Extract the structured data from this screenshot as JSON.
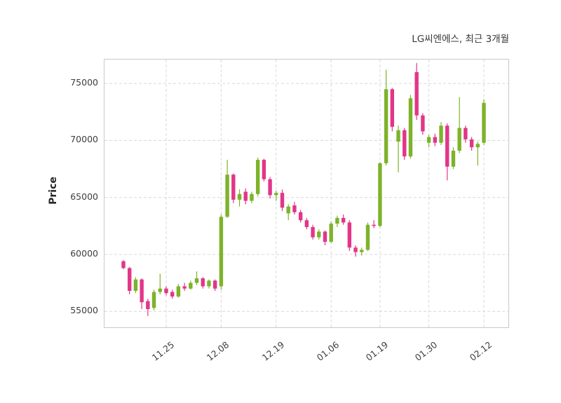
{
  "chart_data": {
    "type": "candlestick",
    "title": "LG씨엔에스, 최근 3개월",
    "ylabel": "Price",
    "ylim": [
      53600,
      77100
    ],
    "grid": "dashed-both-axes",
    "legend": "none",
    "up_color": "#7db32a",
    "down_color": "#e23688",
    "y_ticks": [
      55000,
      60000,
      65000,
      70000,
      75000
    ],
    "x_ticks": [
      {
        "index": 7,
        "label": "11.25"
      },
      {
        "index": 16,
        "label": "12.08"
      },
      {
        "index": 25,
        "label": "12.19"
      },
      {
        "index": 34,
        "label": "01.06"
      },
      {
        "index": 42,
        "label": "01.19"
      },
      {
        "index": 50,
        "label": "01.30"
      },
      {
        "index": 59,
        "label": "02.12"
      }
    ],
    "candle_columns": [
      "open",
      "high",
      "low",
      "close"
    ],
    "candles": [
      [
        59400,
        59500,
        58700,
        58800
      ],
      [
        58800,
        58900,
        56500,
        56800
      ],
      [
        56800,
        58000,
        56600,
        57800
      ],
      [
        57800,
        57900,
        55200,
        55800
      ],
      [
        55900,
        56100,
        54600,
        55200
      ],
      [
        55300,
        56900,
        55100,
        56700
      ],
      [
        56700,
        58300,
        56500,
        57000
      ],
      [
        57000,
        57200,
        56400,
        56600
      ],
      [
        56700,
        56900,
        56100,
        56300
      ],
      [
        56300,
        57400,
        56200,
        57200
      ],
      [
        57200,
        57500,
        56800,
        57000
      ],
      [
        57000,
        57700,
        56900,
        57500
      ],
      [
        57500,
        58500,
        57300,
        57900
      ],
      [
        57900,
        58000,
        57000,
        57200
      ],
      [
        57200,
        57800,
        57000,
        57700
      ],
      [
        57700,
        57800,
        56800,
        57000
      ],
      [
        57200,
        63500,
        56900,
        63300
      ],
      [
        63300,
        68300,
        63200,
        67000
      ],
      [
        67000,
        67100,
        64500,
        64800
      ],
      [
        64800,
        65700,
        64200,
        65300
      ],
      [
        65500,
        65800,
        64400,
        64700
      ],
      [
        64700,
        65500,
        64500,
        65300
      ],
      [
        65300,
        68500,
        65100,
        68300
      ],
      [
        68300,
        68400,
        66400,
        66600
      ],
      [
        66600,
        66800,
        64900,
        65200
      ],
      [
        65200,
        65600,
        64700,
        65400
      ],
      [
        65400,
        65700,
        63800,
        64100
      ],
      [
        63600,
        64400,
        63000,
        64200
      ],
      [
        64300,
        64600,
        63500,
        63700
      ],
      [
        63700,
        63900,
        62800,
        63000
      ],
      [
        63000,
        63200,
        62200,
        62400
      ],
      [
        62400,
        62600,
        61300,
        61500
      ],
      [
        61500,
        62200,
        61300,
        62000
      ],
      [
        62000,
        62100,
        60800,
        61100
      ],
      [
        61100,
        62900,
        61000,
        62700
      ],
      [
        62700,
        63400,
        62400,
        63200
      ],
      [
        63200,
        63500,
        62600,
        62800
      ],
      [
        62800,
        63000,
        60300,
        60600
      ],
      [
        60600,
        60800,
        59800,
        60200
      ],
      [
        60200,
        60600,
        59900,
        60400
      ],
      [
        60400,
        62800,
        60300,
        62600
      ],
      [
        62600,
        63000,
        62300,
        62500
      ],
      [
        62500,
        68100,
        62400,
        68000
      ],
      [
        68000,
        76200,
        67800,
        74500
      ],
      [
        74500,
        74600,
        70800,
        71200
      ],
      [
        69900,
        71300,
        67200,
        70900
      ],
      [
        70900,
        71100,
        68300,
        68600
      ],
      [
        68600,
        74000,
        68400,
        73700
      ],
      [
        76000,
        76800,
        71800,
        72200
      ],
      [
        72200,
        72400,
        70500,
        70800
      ],
      [
        69800,
        70500,
        69400,
        70300
      ],
      [
        70300,
        70600,
        69500,
        69800
      ],
      [
        69800,
        71600,
        69600,
        71300
      ],
      [
        71300,
        71500,
        66500,
        67700
      ],
      [
        67700,
        69400,
        67500,
        69100
      ],
      [
        69100,
        73800,
        68900,
        71100
      ],
      [
        71100,
        71300,
        69800,
        70100
      ],
      [
        70100,
        70300,
        69100,
        69400
      ],
      [
        69400,
        69900,
        67800,
        69700
      ],
      [
        69800,
        73600,
        69600,
        73300
      ]
    ]
  }
}
